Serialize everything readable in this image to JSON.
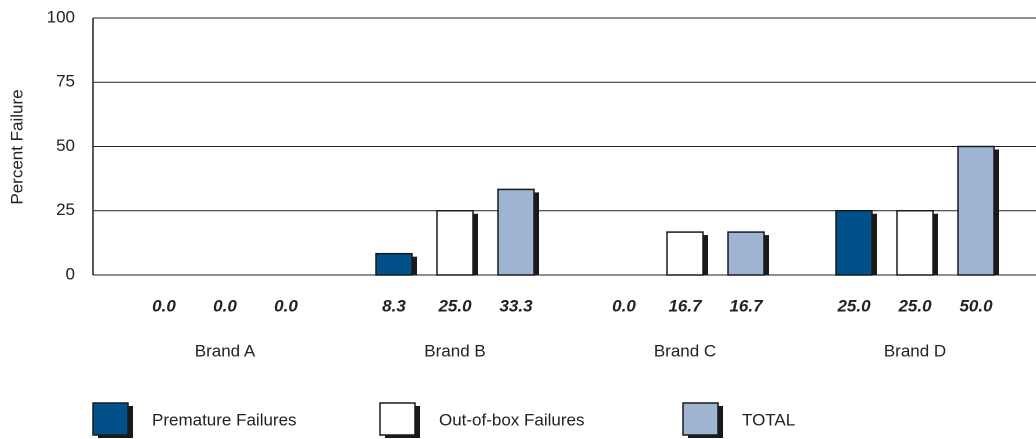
{
  "chart_data": {
    "type": "bar",
    "y_label": "Percent Failure",
    "categories": [
      "Brand A",
      "Brand B",
      "Brand C",
      "Brand D"
    ],
    "series": [
      {
        "name": "Premature Failures",
        "color": "#00508a",
        "values": [
          0,
          8.3,
          0,
          25
        ],
        "value_labels": [
          "0.0",
          "8.3",
          "0.0",
          "25.0"
        ]
      },
      {
        "name": "Out-of-box Failures",
        "color": "#ffffff",
        "values": [
          0,
          25,
          16.7,
          25
        ],
        "value_labels": [
          "0.0",
          "25.0",
          "16.7",
          "25.0"
        ]
      },
      {
        "name": "TOTAL",
        "color": "#9fb3d3",
        "values": [
          0,
          33.3,
          16.7,
          50
        ],
        "value_labels": [
          "0.0",
          "33.3",
          "16.7",
          "50.0"
        ]
      }
    ],
    "ylim": [
      0,
      100
    ],
    "yticks": [
      0,
      25,
      50,
      75,
      100
    ],
    "grid": true
  }
}
